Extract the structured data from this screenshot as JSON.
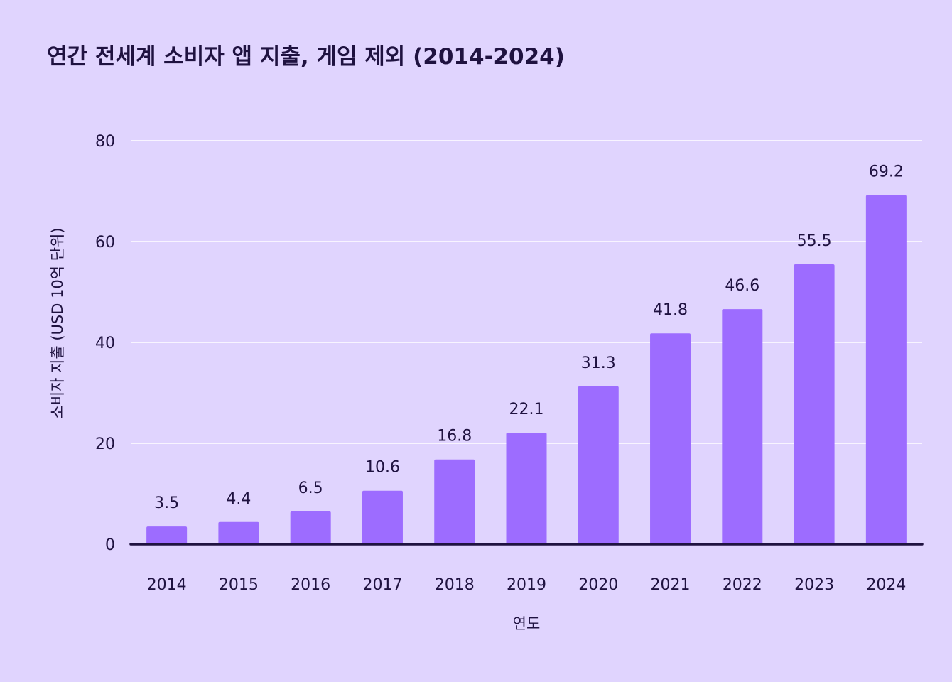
{
  "chart_data": {
    "type": "bar",
    "title": "연간 전세계 소비자 앱 지출, 게임 제외 (2014-2024)",
    "xlabel": "연도",
    "ylabel": "소비자 지출 (USD 10억 단위)",
    "categories": [
      "2014",
      "2015",
      "2016",
      "2017",
      "2018",
      "2019",
      "2020",
      "2021",
      "2022",
      "2023",
      "2024"
    ],
    "values": [
      3.5,
      4.4,
      6.5,
      10.6,
      16.8,
      22.1,
      31.3,
      41.8,
      46.6,
      55.5,
      69.2
    ],
    "value_labels": [
      "3.5",
      "4.4",
      "6.5",
      "10.6",
      "16.8",
      "22.1",
      "31.3",
      "41.8",
      "46.6",
      "55.5",
      "69.2"
    ],
    "ylim": [
      0,
      80
    ],
    "yticks": [
      0,
      20,
      40,
      60,
      80
    ],
    "grid": true,
    "colors": {
      "background": "#e0d4fe",
      "bar": "#9d6cff",
      "gridline": "#ffffff",
      "axis": "#1f1240",
      "text": "#1f1240"
    }
  }
}
